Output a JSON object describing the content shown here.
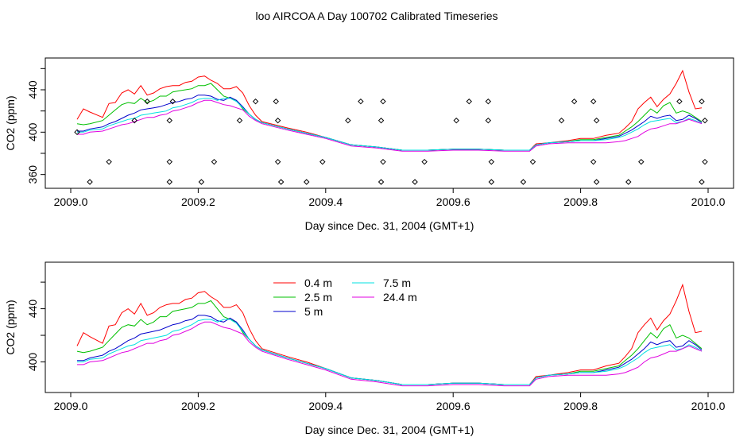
{
  "title": "loo AIRCOA A  Day 100702  Calibrated Timeseries",
  "colors": {
    "0.4 m": "#ff0000",
    "2.5 m": "#00c000",
    "5 m": "#0000cc",
    "7.5 m": "#00e0e0",
    "24.4 m": "#e000e0"
  },
  "chart_data": [
    {
      "type": "line",
      "xlabel": "Day since Dec. 31, 2004 (GMT+1)",
      "ylabel": "CO2 (ppm)",
      "xlim": [
        2009.0,
        2010.0
      ],
      "ylim": [
        347,
        470
      ],
      "x_ticks": [
        "2009.0",
        "2009.2",
        "2009.4",
        "2009.6",
        "2009.8",
        "2010.0"
      ],
      "y_ticks": [
        "360",
        "400",
        "440"
      ],
      "grid": false,
      "series": [
        {
          "name": "0.4 m",
          "color": "#ff0000",
          "x": [
            2009.01,
            2009.02,
            2009.03,
            2009.05,
            2009.06,
            2009.07,
            2009.08,
            2009.09,
            2009.1,
            2009.11,
            2009.12,
            2009.13,
            2009.14,
            2009.15,
            2009.16,
            2009.17,
            2009.18,
            2009.19,
            2009.2,
            2009.21,
            2009.22,
            2009.23,
            2009.24,
            2009.25,
            2009.26,
            2009.27,
            2009.28,
            2009.29,
            2009.3,
            2009.32,
            2009.34,
            2009.37,
            2009.4,
            2009.44,
            2009.48,
            2009.52,
            2009.56,
            2009.6,
            2009.64,
            2009.68,
            2009.72,
            2009.73,
            2009.75,
            2009.78,
            2009.8,
            2009.82,
            2009.84,
            2009.86,
            2009.87,
            2009.88,
            2009.89,
            2009.9,
            2009.91,
            2009.92,
            2009.93,
            2009.94,
            2009.95,
            2009.96,
            2009.97,
            2009.98,
            2009.99
          ],
          "y": [
            412,
            422,
            419,
            414,
            427,
            428,
            437,
            440,
            436,
            444,
            435,
            437,
            441,
            443,
            444,
            444,
            447,
            448,
            452,
            453,
            449,
            446,
            441,
            441,
            443,
            437,
            425,
            416,
            410,
            407,
            404,
            400,
            395,
            388,
            386,
            383,
            383,
            384,
            384,
            383,
            383,
            389,
            390,
            392,
            394,
            394,
            397,
            399,
            404,
            410,
            422,
            428,
            433,
            424,
            431,
            436,
            446,
            458,
            438,
            422,
            423
          ]
        },
        {
          "name": "2.5 m",
          "color": "#00c000",
          "x": [
            2009.01,
            2009.02,
            2009.03,
            2009.05,
            2009.06,
            2009.07,
            2009.08,
            2009.09,
            2009.1,
            2009.11,
            2009.12,
            2009.13,
            2009.14,
            2009.15,
            2009.16,
            2009.17,
            2009.18,
            2009.19,
            2009.2,
            2009.21,
            2009.22,
            2009.23,
            2009.24,
            2009.25,
            2009.26,
            2009.27,
            2009.28,
            2009.29,
            2009.3,
            2009.32,
            2009.34,
            2009.37,
            2009.4,
            2009.44,
            2009.48,
            2009.52,
            2009.56,
            2009.6,
            2009.64,
            2009.68,
            2009.72,
            2009.73,
            2009.75,
            2009.78,
            2009.8,
            2009.82,
            2009.84,
            2009.86,
            2009.87,
            2009.88,
            2009.89,
            2009.9,
            2009.91,
            2009.92,
            2009.93,
            2009.94,
            2009.95,
            2009.96,
            2009.97,
            2009.98,
            2009.99
          ],
          "y": [
            408,
            407,
            408,
            411,
            416,
            421,
            426,
            428,
            427,
            432,
            428,
            430,
            434,
            434,
            438,
            439,
            440,
            441,
            444,
            444,
            446,
            440,
            434,
            432,
            430,
            422,
            417,
            412,
            409,
            406,
            403,
            399,
            395,
            388,
            386,
            383,
            383,
            384,
            384,
            383,
            383,
            388,
            390,
            391,
            393,
            393,
            395,
            397,
            401,
            405,
            410,
            416,
            422,
            418,
            425,
            428,
            418,
            420,
            418,
            414,
            410
          ]
        },
        {
          "name": "5 m",
          "color": "#0000cc",
          "x": [
            2009.01,
            2009.02,
            2009.03,
            2009.05,
            2009.06,
            2009.07,
            2009.08,
            2009.09,
            2009.1,
            2009.11,
            2009.12,
            2009.13,
            2009.14,
            2009.15,
            2009.16,
            2009.17,
            2009.18,
            2009.19,
            2009.2,
            2009.21,
            2009.22,
            2009.23,
            2009.24,
            2009.25,
            2009.26,
            2009.27,
            2009.28,
            2009.29,
            2009.3,
            2009.32,
            2009.34,
            2009.37,
            2009.4,
            2009.44,
            2009.48,
            2009.52,
            2009.56,
            2009.6,
            2009.64,
            2009.68,
            2009.72,
            2009.73,
            2009.75,
            2009.78,
            2009.8,
            2009.82,
            2009.84,
            2009.86,
            2009.87,
            2009.88,
            2009.89,
            2009.9,
            2009.91,
            2009.92,
            2009.93,
            2009.94,
            2009.95,
            2009.96,
            2009.97,
            2009.98,
            2009.99
          ],
          "y": [
            401,
            401,
            403,
            405,
            408,
            410,
            413,
            416,
            418,
            421,
            422,
            423,
            424,
            426,
            428,
            429,
            431,
            432,
            435,
            435,
            434,
            431,
            430,
            433,
            430,
            424,
            417,
            412,
            409,
            406,
            403,
            399,
            395,
            388,
            386,
            383,
            383,
            384,
            384,
            383,
            383,
            388,
            390,
            391,
            392,
            392,
            394,
            396,
            399,
            402,
            406,
            410,
            415,
            413,
            415,
            416,
            411,
            412,
            416,
            413,
            409
          ]
        },
        {
          "name": "7.5 m",
          "color": "#00e0e0",
          "x": [
            2009.01,
            2009.02,
            2009.03,
            2009.05,
            2009.06,
            2009.07,
            2009.08,
            2009.09,
            2009.1,
            2009.11,
            2009.12,
            2009.13,
            2009.14,
            2009.15,
            2009.16,
            2009.17,
            2009.18,
            2009.19,
            2009.2,
            2009.21,
            2009.22,
            2009.23,
            2009.24,
            2009.25,
            2009.26,
            2009.27,
            2009.28,
            2009.29,
            2009.3,
            2009.32,
            2009.34,
            2009.37,
            2009.4,
            2009.44,
            2009.48,
            2009.52,
            2009.56,
            2009.6,
            2009.64,
            2009.68,
            2009.72,
            2009.73,
            2009.75,
            2009.78,
            2009.8,
            2009.82,
            2009.84,
            2009.86,
            2009.87,
            2009.88,
            2009.89,
            2009.9,
            2009.91,
            2009.92,
            2009.93,
            2009.94,
            2009.95,
            2009.96,
            2009.97,
            2009.98,
            2009.99
          ],
          "y": [
            400,
            400,
            402,
            403,
            406,
            408,
            410,
            412,
            413,
            416,
            417,
            418,
            419,
            420,
            423,
            424,
            426,
            428,
            431,
            432,
            432,
            430,
            432,
            432,
            429,
            423,
            417,
            412,
            409,
            406,
            403,
            399,
            395,
            388,
            386,
            383,
            383,
            384,
            384,
            383,
            383,
            388,
            390,
            391,
            392,
            392,
            393,
            395,
            397,
            400,
            403,
            407,
            410,
            411,
            412,
            413,
            409,
            410,
            413,
            411,
            408
          ]
        },
        {
          "name": "24.4 m",
          "color": "#e000e0",
          "x": [
            2009.01,
            2009.02,
            2009.03,
            2009.05,
            2009.06,
            2009.07,
            2009.08,
            2009.09,
            2009.1,
            2009.11,
            2009.12,
            2009.13,
            2009.14,
            2009.15,
            2009.16,
            2009.17,
            2009.18,
            2009.19,
            2009.2,
            2009.21,
            2009.22,
            2009.23,
            2009.24,
            2009.25,
            2009.26,
            2009.27,
            2009.28,
            2009.29,
            2009.3,
            2009.32,
            2009.34,
            2009.37,
            2009.4,
            2009.44,
            2009.48,
            2009.52,
            2009.56,
            2009.6,
            2009.64,
            2009.68,
            2009.72,
            2009.73,
            2009.75,
            2009.78,
            2009.8,
            2009.82,
            2009.84,
            2009.86,
            2009.87,
            2009.88,
            2009.89,
            2009.9,
            2009.91,
            2009.92,
            2009.93,
            2009.94,
            2009.95,
            2009.96,
            2009.97,
            2009.98,
            2009.99
          ],
          "y": [
            398,
            398,
            400,
            401,
            403,
            405,
            407,
            408,
            410,
            412,
            414,
            414,
            416,
            417,
            420,
            421,
            423,
            425,
            428,
            430,
            430,
            428,
            426,
            425,
            423,
            421,
            415,
            411,
            408,
            405,
            402,
            398,
            394,
            387,
            385,
            382,
            382,
            383,
            383,
            382,
            382,
            387,
            389,
            390,
            390,
            390,
            390,
            391,
            392,
            394,
            396,
            400,
            403,
            404,
            406,
            408,
            408,
            410,
            412,
            410,
            408
          ]
        }
      ],
      "marker_series": {
        "x": [
          2009.01,
          2009.03,
          2009.06,
          2009.1,
          2009.12,
          2009.155,
          2009.155,
          2009.16,
          2009.155,
          2009.205,
          2009.225,
          2009.265,
          2009.29,
          2009.322,
          2009.325,
          2009.325,
          2009.33,
          2009.37,
          2009.395,
          2009.435,
          2009.455,
          2009.487,
          2009.49,
          2009.49,
          2009.487,
          2009.54,
          2009.555,
          2009.605,
          2009.625,
          2009.655,
          2009.655,
          2009.66,
          2009.66,
          2009.71,
          2009.725,
          2009.77,
          2009.79,
          2009.82,
          2009.825,
          2009.82,
          2009.825,
          2009.875,
          2009.895,
          2009.955,
          2009.99,
          2009.995,
          2009.995,
          2009.99
        ],
        "y": [
          400,
          353,
          372,
          411,
          429,
          372,
          353,
          429,
          411,
          353,
          372,
          411,
          429,
          429,
          411,
          372,
          353,
          353,
          372,
          411,
          429,
          411,
          429,
          372,
          353,
          353,
          372,
          411,
          429,
          429,
          411,
          372,
          353,
          353,
          372,
          411,
          429,
          429,
          411,
          372,
          353,
          353,
          372,
          429,
          429,
          411,
          372,
          353
        ]
      }
    },
    {
      "type": "line",
      "xlabel": "Day since Dec. 31, 2004 (GMT+1)",
      "ylabel": "CO2 (ppm)",
      "xlim": [
        2009.0,
        2010.0
      ],
      "ylim": [
        377,
        475
      ],
      "x_ticks": [
        "2009.0",
        "2009.2",
        "2009.4",
        "2009.6",
        "2009.8",
        "2010.0"
      ],
      "y_ticks": [
        "400",
        "440"
      ],
      "grid": false,
      "legend": {
        "placement": "top-left",
        "entries": [
          "0.4 m",
          "2.5 m",
          "5 m",
          "7.5 m",
          "24.4 m"
        ]
      },
      "same_series_as_top": true
    }
  ]
}
